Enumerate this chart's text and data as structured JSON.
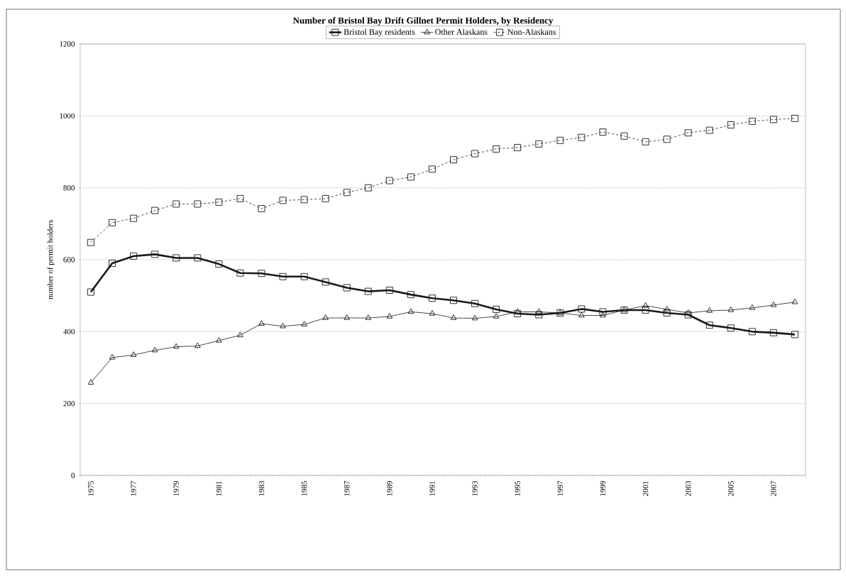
{
  "chart_data": {
    "type": "line",
    "title": "Number of Bristol Bay Drift Gillnet Permit Holders, by Residency",
    "ylabel": "number of permit holders",
    "categories": [
      "1975",
      null,
      "1977",
      null,
      "1979",
      null,
      "1981",
      null,
      "1983",
      null,
      "1985",
      null,
      "1987",
      null,
      "1989",
      null,
      "1991",
      null,
      "1993",
      null,
      "1995",
      null,
      "1997",
      null,
      "1999",
      null,
      "2001",
      null,
      "2003",
      null,
      "2005",
      null,
      "2007",
      null
    ],
    "series": [
      {
        "name": "Bristol Bay residents",
        "color": "#1a1a1a",
        "marker": "square",
        "line_style": "solid",
        "values": [
          510,
          590,
          610,
          615,
          605,
          605,
          588,
          563,
          562,
          553,
          553,
          538,
          522,
          512,
          515,
          503,
          493,
          487,
          478,
          462,
          450,
          447,
          452,
          463,
          455,
          460,
          460,
          452,
          447,
          418,
          410,
          400,
          397,
          392
        ]
      },
      {
        "name": "Other Alaskans",
        "color": "#1a1a1a",
        "marker": "triangle",
        "line_style": "solid",
        "values": [
          258,
          328,
          335,
          348,
          358,
          360,
          375,
          390,
          422,
          415,
          420,
          438,
          438,
          438,
          442,
          455,
          450,
          438,
          437,
          442,
          455,
          455,
          452,
          445,
          445,
          460,
          472,
          462,
          452,
          458,
          460,
          466,
          474,
          482
        ]
      },
      {
        "name": "Non-Alaskans",
        "color": "#1a1a1a",
        "marker": "square",
        "line_style": "dashed",
        "values": [
          648,
          703,
          715,
          737,
          755,
          755,
          760,
          770,
          742,
          765,
          767,
          770,
          787,
          800,
          820,
          830,
          852,
          878,
          895,
          908,
          912,
          922,
          932,
          940,
          955,
          944,
          928,
          935,
          953,
          960,
          975,
          985,
          990,
          993
        ]
      }
    ],
    "ylim": [
      0,
      1200
    ],
    "yticks": [
      0,
      200,
      400,
      600,
      800,
      1000,
      1200
    ],
    "grid": "y",
    "legend": "top"
  }
}
